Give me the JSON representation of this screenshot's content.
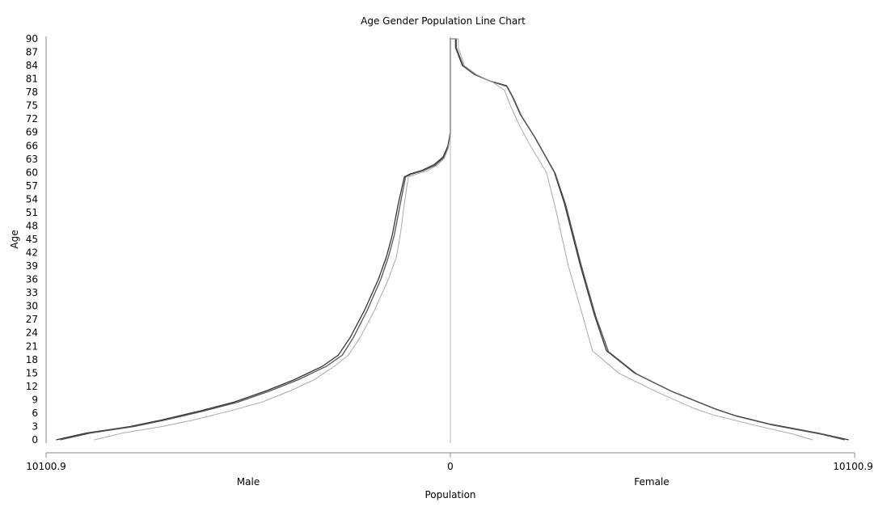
{
  "chart_data": {
    "type": "line",
    "title": "Age Gender Population Line Chart",
    "xlabel": "Population",
    "ylabel": "Age",
    "left_side_label": "Male",
    "right_side_label": "Female",
    "x_tick_labels": [
      "10100.9",
      "0",
      "10100.9"
    ],
    "xlim": [
      -10100.9,
      10100.9
    ],
    "ylim": [
      0,
      90
    ],
    "y_ticks": [
      0,
      3,
      6,
      9,
      12,
      15,
      18,
      21,
      24,
      27,
      30,
      33,
      36,
      39,
      42,
      45,
      48,
      51,
      54,
      57,
      60,
      63,
      66,
      69,
      72,
      75,
      78,
      81,
      84,
      87,
      90
    ],
    "grid": false,
    "legend": "none",
    "series": [
      {
        "color": "#333333",
        "points": [
          [
            -9850,
            0
          ],
          [
            -9100,
            1.5
          ],
          [
            -8000,
            3
          ],
          [
            -7200,
            4.5
          ],
          [
            -6250,
            6.5
          ],
          [
            -5400,
            8.5
          ],
          [
            -4600,
            11
          ],
          [
            -3900,
            13.5
          ],
          [
            -3200,
            16.5
          ],
          [
            -2800,
            19
          ],
          [
            -2500,
            23
          ],
          [
            -2150,
            29
          ],
          [
            -1800,
            36
          ],
          [
            -1600,
            41
          ],
          [
            -1450,
            46
          ],
          [
            -1300,
            53
          ],
          [
            -1150,
            59
          ],
          [
            -1000,
            59.7
          ],
          [
            -700,
            60.5
          ],
          [
            -400,
            61.8
          ],
          [
            -180,
            63.5
          ],
          [
            -60,
            66
          ],
          [
            0,
            69
          ],
          [
            0,
            90
          ],
          [
            130,
            90
          ],
          [
            130,
            88
          ],
          [
            300,
            84
          ],
          [
            600,
            82
          ],
          [
            1000,
            80.5
          ],
          [
            1400,
            79.5
          ],
          [
            1550,
            77
          ],
          [
            1750,
            73
          ],
          [
            2100,
            68
          ],
          [
            2600,
            60
          ],
          [
            2850,
            53
          ],
          [
            3250,
            39
          ],
          [
            3600,
            28
          ],
          [
            3900,
            20
          ],
          [
            4600,
            15
          ],
          [
            5500,
            11
          ],
          [
            6600,
            7
          ],
          [
            7100,
            5.5
          ],
          [
            8000,
            3.5
          ],
          [
            9200,
            1.5
          ],
          [
            9950,
            0
          ]
        ]
      },
      {
        "color": "#555555",
        "points": [
          [
            -9750,
            0
          ],
          [
            -9000,
            1.5
          ],
          [
            -7900,
            3
          ],
          [
            -7100,
            4.5
          ],
          [
            -6150,
            6.5
          ],
          [
            -5300,
            8.5
          ],
          [
            -4500,
            11
          ],
          [
            -3800,
            13.5
          ],
          [
            -3100,
            16.5
          ],
          [
            -2700,
            19
          ],
          [
            -2420,
            23
          ],
          [
            -2080,
            29
          ],
          [
            -1740,
            36
          ],
          [
            -1550,
            41
          ],
          [
            -1400,
            46
          ],
          [
            -1250,
            53
          ],
          [
            -1120,
            59
          ],
          [
            -980,
            59.6
          ],
          [
            -680,
            60.4
          ],
          [
            -380,
            61.6
          ],
          [
            -170,
            63.3
          ],
          [
            -50,
            65.8
          ],
          [
            0,
            68.5
          ],
          [
            0,
            90
          ],
          [
            150,
            90
          ],
          [
            150,
            88
          ],
          [
            320,
            84
          ],
          [
            620,
            82
          ],
          [
            1020,
            80.4
          ],
          [
            1420,
            79.3
          ],
          [
            1570,
            76.8
          ],
          [
            1770,
            72.8
          ],
          [
            2120,
            67.8
          ],
          [
            2620,
            59.8
          ],
          [
            2880,
            52.8
          ],
          [
            3280,
            38.8
          ],
          [
            3630,
            27.8
          ],
          [
            3950,
            19.8
          ],
          [
            4650,
            14.8
          ],
          [
            5550,
            10.8
          ],
          [
            6650,
            6.8
          ],
          [
            7150,
            5.3
          ],
          [
            8050,
            3.3
          ],
          [
            9250,
            1.3
          ],
          [
            9850,
            0
          ]
        ]
      },
      {
        "color": "#aaaaaa",
        "points": [
          [
            -8900,
            0
          ],
          [
            -8200,
            1.5
          ],
          [
            -7200,
            3
          ],
          [
            -6400,
            4.5
          ],
          [
            -5500,
            6.5
          ],
          [
            -4700,
            8.5
          ],
          [
            -4000,
            11
          ],
          [
            -3400,
            13.5
          ],
          [
            -2900,
            16.5
          ],
          [
            -2550,
            19
          ],
          [
            -2250,
            23
          ],
          [
            -1900,
            29
          ],
          [
            -1550,
            36
          ],
          [
            -1350,
            41
          ],
          [
            -1250,
            46
          ],
          [
            -1150,
            53
          ],
          [
            -1050,
            59
          ],
          [
            -900,
            59.5
          ],
          [
            -600,
            60.3
          ],
          [
            -350,
            61.5
          ],
          [
            -150,
            63.2
          ],
          [
            -50,
            65.5
          ],
          [
            0,
            68
          ],
          [
            0,
            90
          ],
          [
            200,
            90
          ],
          [
            200,
            88
          ],
          [
            350,
            84
          ],
          [
            650,
            82
          ],
          [
            1050,
            80.3
          ],
          [
            1350,
            78.5
          ],
          [
            1500,
            75
          ],
          [
            1700,
            71
          ],
          [
            2000,
            66
          ],
          [
            2400,
            60
          ],
          [
            2600,
            53
          ],
          [
            2950,
            39
          ],
          [
            3300,
            28
          ],
          [
            3550,
            20
          ],
          [
            4200,
            15
          ],
          [
            5100,
            11
          ],
          [
            6100,
            7
          ],
          [
            6600,
            5.5
          ],
          [
            7500,
            3.5
          ],
          [
            8600,
            1.2
          ],
          [
            9050,
            0
          ]
        ]
      }
    ]
  }
}
